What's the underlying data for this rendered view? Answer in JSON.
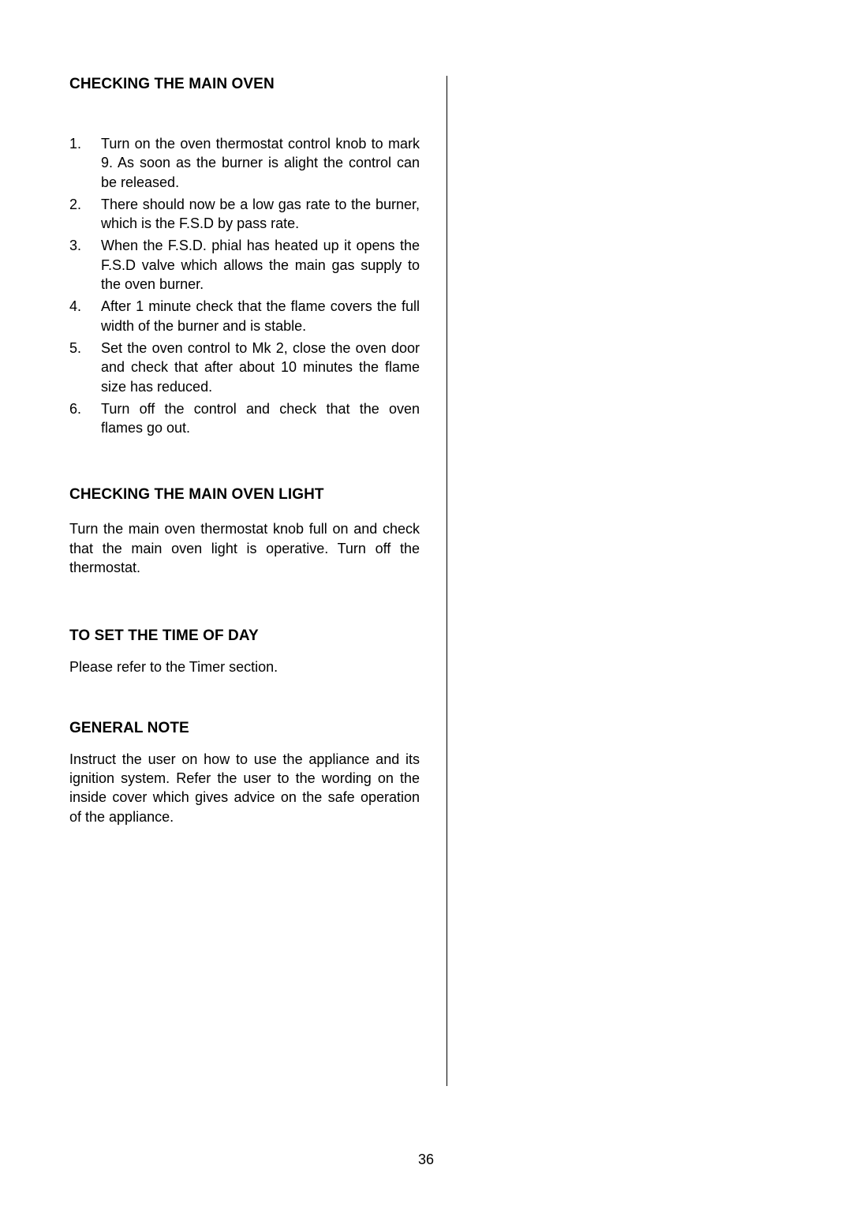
{
  "page_number": "36",
  "colors": {
    "text": "#000000",
    "background": "#ffffff",
    "divider": "#000000"
  },
  "typography": {
    "heading_size_pt": 14,
    "body_size_pt": 13,
    "font_family": "Arial"
  },
  "left_column": {
    "section_main_oven": {
      "heading": "CHECKING THE MAIN OVEN",
      "items": [
        {
          "num": "1.",
          "text": "Turn on the oven thermostat control knob to mark 9. As soon as the burner is alight the control can be released."
        },
        {
          "num": "2.",
          "text": "There should now be a low gas rate to the burner, which is the F.S.D by pass rate."
        },
        {
          "num": "3.",
          "text": "When the F.S.D. phial has heated up it opens the F.S.D valve which allows the main gas supply to the oven burner."
        },
        {
          "num": "4.",
          "text": "After 1 minute check that the flame covers the full width of the burner and is stable."
        },
        {
          "num": "5.",
          "text": "Set the oven control to Mk 2, close the oven door and check that after about 10 minutes the flame size has reduced."
        },
        {
          "num": "6.",
          "text": "Turn off the control and check that the oven flames go out."
        }
      ]
    },
    "section_light": {
      "heading": "CHECKING THE MAIN OVEN LIGHT",
      "body": "Turn the main oven thermostat knob full on and check that the main oven light is operative.  Turn off the thermostat."
    },
    "section_time": {
      "heading": "TO SET THE TIME OF DAY",
      "body": "Please refer to the Timer section."
    },
    "section_general": {
      "heading": "GENERAL NOTE",
      "body": "Instruct the user on how to use the appliance and its ignition system. Refer the user to the wording on the inside cover which gives advice on the safe operation of the appliance."
    }
  }
}
